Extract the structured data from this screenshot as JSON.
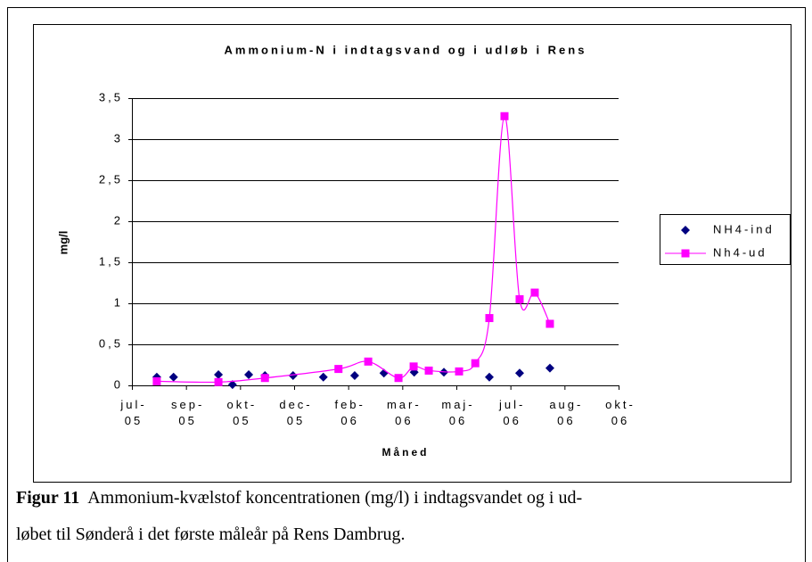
{
  "chart_data": {
    "type": "scatter-line",
    "title": "Ammonium-N i indtagsvand og i udløb i Rens",
    "x_label": "Måned",
    "y_label": "mg/l",
    "xlim": [
      0,
      9
    ],
    "xticks": [
      {
        "value": 0,
        "label": "jul-05"
      },
      {
        "value": 1,
        "label": "sep-05"
      },
      {
        "value": 2,
        "label": "okt-05"
      },
      {
        "value": 3,
        "label": "dec-05"
      },
      {
        "value": 4,
        "label": "feb-06"
      },
      {
        "value": 5,
        "label": "mar-06"
      },
      {
        "value": 6,
        "label": "maj-06"
      },
      {
        "value": 7,
        "label": "jul-06"
      },
      {
        "value": 8,
        "label": "aug-06"
      },
      {
        "value": 9,
        "label": "okt-06"
      }
    ],
    "ylim": [
      0,
      3.5
    ],
    "yticks": [
      0,
      {
        "value": 0.5,
        "label": "0,5"
      },
      1,
      {
        "value": 1.5,
        "label": "1,5"
      },
      2,
      {
        "value": 2.5,
        "label": "2,5"
      },
      3,
      {
        "value": 3.5,
        "label": "3,5"
      }
    ],
    "grid": true,
    "legend": "right",
    "series": [
      {
        "name": "NH4-ind",
        "color": "#000080",
        "marker": "diamond",
        "line": false,
        "x": [
          0.46,
          0.77,
          1.6,
          1.86,
          2.16,
          2.46,
          2.98,
          3.54,
          4.12,
          4.66,
          5.22,
          5.77,
          6.61,
          7.17,
          7.73
        ],
        "values": [
          0.1,
          0.1,
          0.13,
          0.01,
          0.13,
          0.12,
          0.12,
          0.1,
          0.12,
          0.15,
          0.16,
          0.16,
          0.1,
          0.15,
          0.21
        ]
      },
      {
        "name": "Nh4-ud",
        "color": "#ff00ff",
        "marker": "square",
        "line": true,
        "x": [
          0.46,
          1.6,
          2.46,
          3.82,
          4.37,
          4.93,
          5.21,
          5.49,
          6.05,
          6.35,
          6.61,
          6.89,
          7.17,
          7.45,
          7.73
        ],
        "values": [
          0.05,
          0.04,
          0.09,
          0.2,
          0.29,
          0.09,
          0.23,
          0.18,
          0.17,
          0.27,
          0.82,
          3.28,
          1.05,
          1.13,
          0.75
        ]
      }
    ]
  },
  "caption": {
    "label": "Figur 11",
    "lines": [
      "Ammonium-kvælstof koncentrationen (mg/l) i indtagsvandet og i ud-",
      "løbet til Sønderå i det første måleår på Rens Dambrug."
    ]
  }
}
